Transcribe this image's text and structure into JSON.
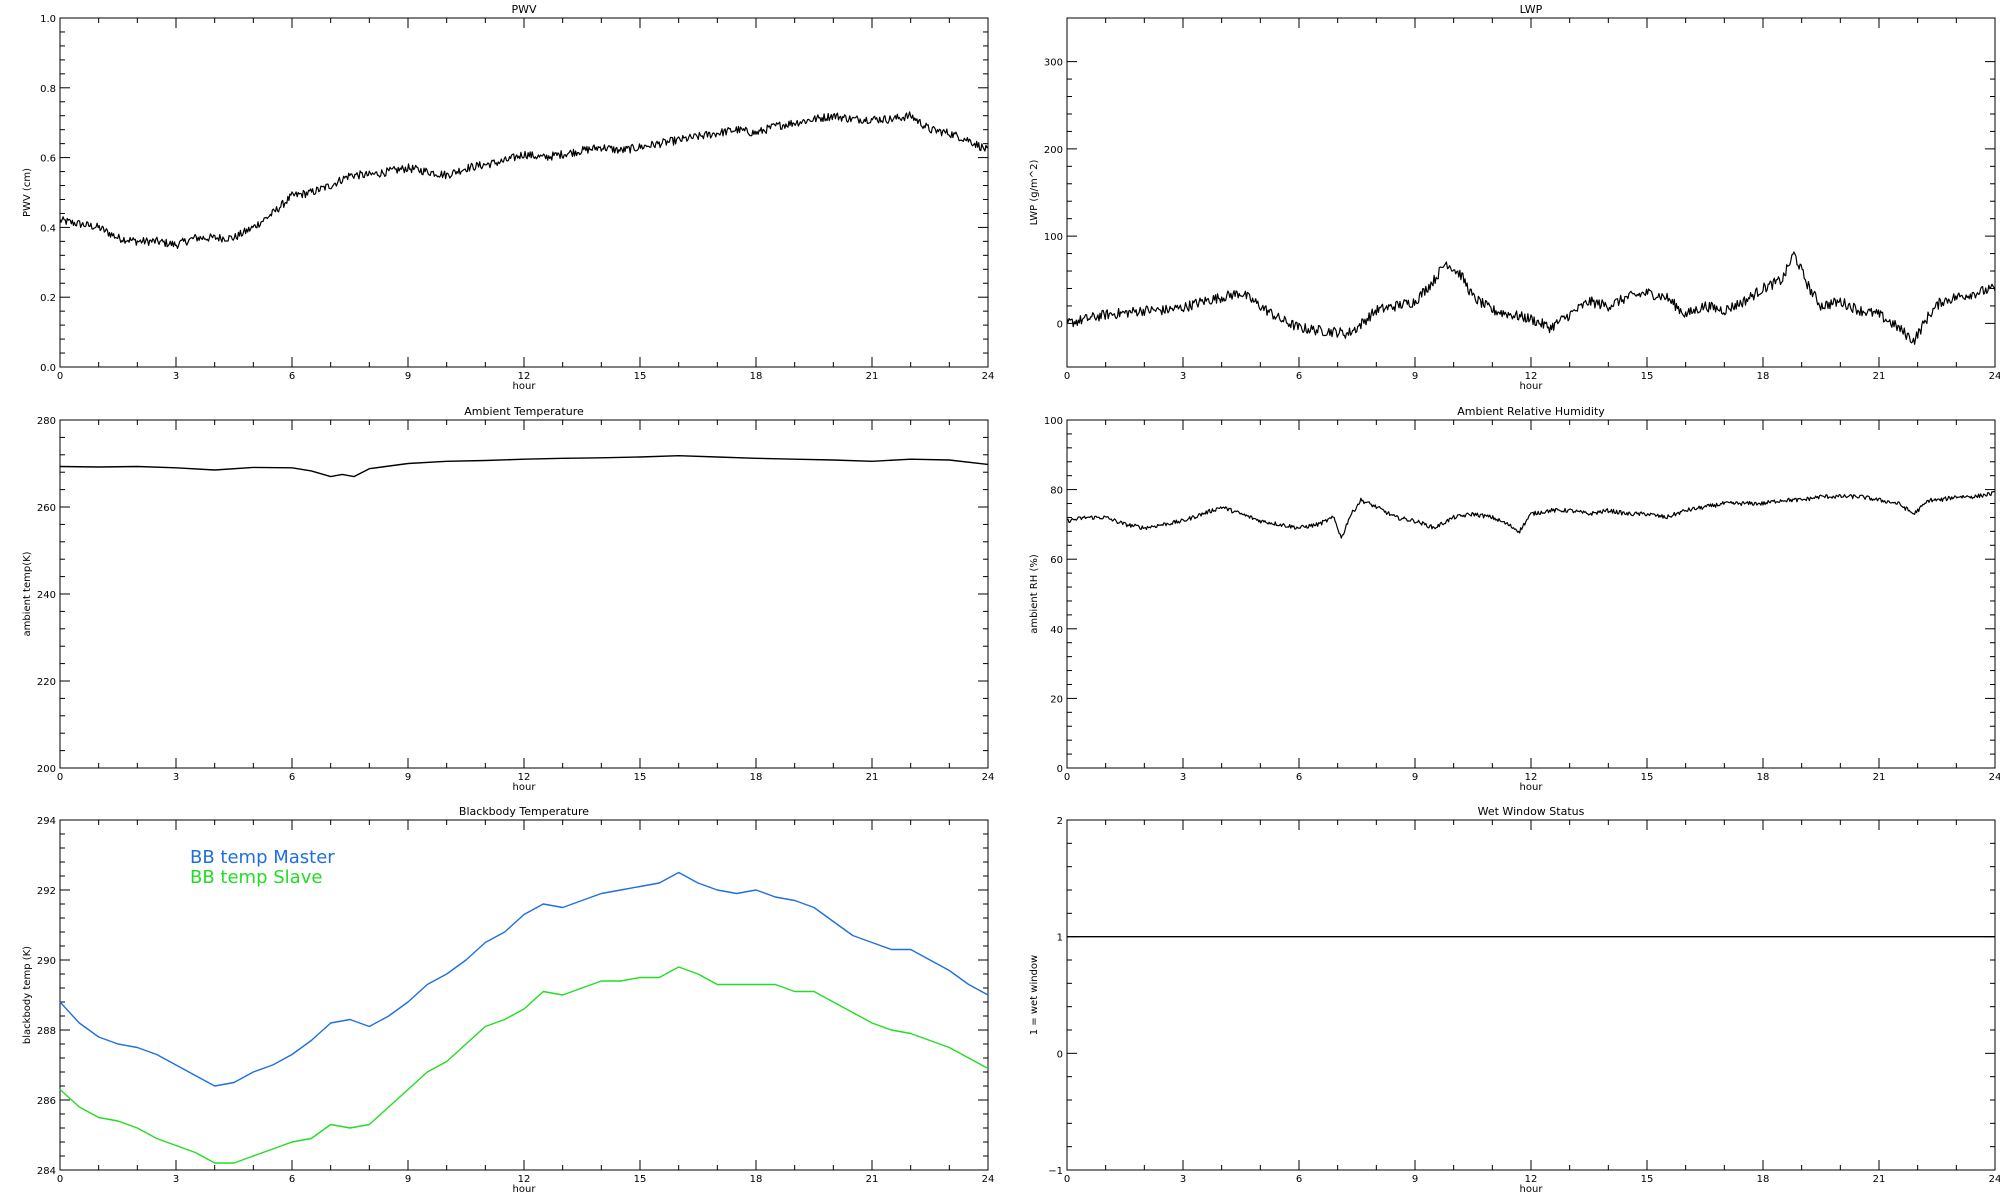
{
  "chart_data": [
    {
      "id": "pwv",
      "type": "line",
      "title": "PWV",
      "xlabel": "hour",
      "ylabel": "PWV (cm)",
      "xlim": [
        0,
        24
      ],
      "ylim": [
        0,
        1.0
      ],
      "xticks": [
        0,
        3,
        6,
        9,
        12,
        15,
        18,
        21,
        24
      ],
      "yticks": [
        "0.0",
        "0.2",
        "0.4",
        "0.6",
        "0.8",
        "1.0"
      ],
      "ytick_values": [
        0,
        0.2,
        0.4,
        0.6,
        0.8,
        1.0
      ],
      "noise": 0.012,
      "series": [
        {
          "color": "#000000",
          "x": [
            0,
            0.5,
            1,
            1.5,
            2,
            2.5,
            3,
            3.5,
            4,
            4.5,
            5,
            5.5,
            6,
            6.5,
            7,
            7.5,
            8,
            8.5,
            9,
            9.5,
            10,
            10.5,
            11,
            11.5,
            12,
            12.5,
            13,
            13.5,
            14,
            14.5,
            15,
            15.5,
            16,
            16.5,
            17,
            17.5,
            18,
            18.5,
            19,
            19.5,
            20,
            20.5,
            21,
            21.5,
            22,
            22.5,
            23,
            23.5,
            24
          ],
          "y": [
            0.42,
            0.41,
            0.4,
            0.37,
            0.36,
            0.36,
            0.35,
            0.37,
            0.37,
            0.37,
            0.4,
            0.44,
            0.49,
            0.5,
            0.52,
            0.55,
            0.55,
            0.56,
            0.57,
            0.56,
            0.55,
            0.57,
            0.58,
            0.59,
            0.61,
            0.6,
            0.61,
            0.62,
            0.63,
            0.62,
            0.63,
            0.64,
            0.65,
            0.66,
            0.67,
            0.68,
            0.67,
            0.69,
            0.7,
            0.71,
            0.72,
            0.71,
            0.71,
            0.71,
            0.72,
            0.68,
            0.67,
            0.65,
            0.62
          ]
        }
      ]
    },
    {
      "id": "lwp",
      "type": "line",
      "title": "LWP",
      "xlabel": "hour",
      "ylabel": "LWP (g/m^2)",
      "xlim": [
        0,
        24
      ],
      "ylim": [
        -50,
        350
      ],
      "xticks": [
        0,
        3,
        6,
        9,
        12,
        15,
        18,
        21,
        24
      ],
      "yticks": [
        "0",
        "100",
        "200",
        "300"
      ],
      "ytick_values": [
        0,
        100,
        200,
        300
      ],
      "noise": 6,
      "series": [
        {
          "color": "#000000",
          "x": [
            0,
            0.5,
            1,
            1.5,
            2,
            2.5,
            3,
            3.5,
            4,
            4.5,
            5,
            5.5,
            6,
            6.5,
            7,
            7.25,
            7.5,
            8,
            8.5,
            9,
            9.5,
            9.8,
            10.2,
            10.5,
            11,
            11.5,
            12,
            12.5,
            13,
            13.5,
            14,
            14.5,
            15,
            15.5,
            16,
            16.5,
            17,
            17.5,
            18,
            18.5,
            18.8,
            19.2,
            19.5,
            20,
            20.5,
            21,
            21.5,
            21.9,
            22.3,
            22.6,
            23,
            23.5,
            24
          ],
          "y": [
            0,
            5,
            10,
            12,
            15,
            15,
            18,
            25,
            30,
            35,
            20,
            5,
            -5,
            -8,
            -10,
            -12,
            -5,
            15,
            20,
            25,
            50,
            70,
            55,
            30,
            15,
            10,
            5,
            -5,
            10,
            25,
            20,
            30,
            35,
            30,
            10,
            20,
            15,
            25,
            40,
            50,
            80,
            40,
            20,
            25,
            15,
            10,
            -5,
            -20,
            10,
            25,
            30,
            35,
            40
          ]
        }
      ]
    },
    {
      "id": "ambient_temp",
      "type": "line",
      "title": "Ambient Temperature",
      "xlabel": "hour",
      "ylabel": "ambient temp(K)",
      "xlim": [
        0,
        24
      ],
      "ylim": [
        200,
        280
      ],
      "xticks": [
        0,
        3,
        6,
        9,
        12,
        15,
        18,
        21,
        24
      ],
      "yticks": [
        "200",
        "220",
        "240",
        "260",
        "280"
      ],
      "ytick_values": [
        200,
        220,
        240,
        260,
        280
      ],
      "noise": 0,
      "series": [
        {
          "color": "#000000",
          "x": [
            0,
            1,
            2,
            3,
            4,
            5,
            6,
            6.5,
            7,
            7.3,
            7.6,
            8,
            9,
            10,
            11,
            12,
            13,
            14,
            15,
            16,
            17,
            18,
            19,
            20,
            21,
            22,
            23,
            24
          ],
          "y": [
            269.3,
            269.2,
            269.3,
            269.0,
            268.5,
            269.1,
            269.0,
            268.3,
            267.0,
            267.5,
            267.0,
            268.8,
            270.0,
            270.5,
            270.7,
            271.0,
            271.2,
            271.3,
            271.5,
            271.8,
            271.5,
            271.2,
            271.0,
            270.8,
            270.5,
            271.0,
            270.8,
            269.8
          ]
        }
      ]
    },
    {
      "id": "ambient_rh",
      "type": "line",
      "title": "Ambient Relative Humidity",
      "xlabel": "hour",
      "ylabel": "ambient RH (%)",
      "xlim": [
        0,
        24
      ],
      "ylim": [
        0,
        100
      ],
      "xticks": [
        0,
        3,
        6,
        9,
        12,
        15,
        18,
        21,
        24
      ],
      "yticks": [
        "0",
        "20",
        "40",
        "60",
        "80",
        "100"
      ],
      "ytick_values": [
        0,
        20,
        40,
        60,
        80,
        100
      ],
      "noise": 0.6,
      "series": [
        {
          "color": "#000000",
          "x": [
            0,
            0.5,
            1,
            1.5,
            2,
            2.5,
            3,
            3.5,
            4,
            4.5,
            5,
            5.5,
            6,
            6.5,
            6.9,
            7.1,
            7.3,
            7.6,
            8,
            8.5,
            9,
            9.5,
            10,
            10.5,
            11,
            11.4,
            11.7,
            12,
            12.5,
            13,
            13.5,
            14,
            14.5,
            15,
            15.5,
            16,
            16.5,
            17,
            17.5,
            18,
            18.5,
            19,
            19.5,
            20,
            20.5,
            21,
            21.5,
            21.9,
            22.3,
            22.6,
            23,
            23.5,
            24
          ],
          "y": [
            71,
            72,
            72,
            70,
            69,
            70,
            71,
            73,
            75,
            73,
            71,
            70,
            69,
            70,
            72,
            66,
            72,
            77,
            75,
            72,
            71,
            69,
            72,
            73,
            72,
            70,
            68,
            73,
            74,
            74,
            73,
            74,
            73,
            73,
            72,
            74,
            75,
            76,
            76,
            76,
            77,
            77,
            78,
            78,
            78,
            77,
            76,
            73,
            77,
            77,
            78,
            78,
            79
          ]
        }
      ]
    },
    {
      "id": "blackbody_temp",
      "type": "line",
      "title": "Blackbody Temperature",
      "xlabel": "hour",
      "ylabel": "blackbody temp (K)",
      "xlim": [
        0,
        24
      ],
      "ylim": [
        284,
        294
      ],
      "xticks": [
        0,
        3,
        6,
        9,
        12,
        15,
        18,
        21,
        24
      ],
      "yticks": [
        "284",
        "286",
        "288",
        "290",
        "292",
        "294"
      ],
      "ytick_values": [
        284,
        286,
        288,
        290,
        292,
        294
      ],
      "noise": 0,
      "legend_position": "top-left",
      "series": [
        {
          "name": "BB temp Master",
          "color": "#1f6fe0",
          "x": [
            0,
            0.5,
            1,
            1.5,
            2,
            2.5,
            3,
            3.5,
            4,
            4.5,
            5,
            5.5,
            6,
            6.5,
            7,
            7.5,
            8,
            8.5,
            9,
            9.5,
            10,
            10.5,
            11,
            11.5,
            12,
            12.5,
            13,
            13.5,
            14,
            14.5,
            15,
            15.5,
            16,
            16.5,
            17,
            17.5,
            18,
            18.5,
            19,
            19.5,
            20,
            20.5,
            21,
            21.5,
            22,
            22.5,
            23,
            23.5,
            24
          ],
          "y": [
            288.8,
            288.2,
            287.8,
            287.6,
            287.5,
            287.3,
            287.0,
            286.7,
            286.4,
            286.5,
            286.8,
            287.0,
            287.3,
            287.7,
            288.2,
            288.3,
            288.1,
            288.4,
            288.8,
            289.3,
            289.6,
            290.0,
            290.5,
            290.8,
            291.3,
            291.6,
            291.5,
            291.7,
            291.9,
            292.0,
            292.1,
            292.2,
            292.5,
            292.2,
            292.0,
            291.9,
            292.0,
            291.8,
            291.7,
            291.5,
            291.1,
            290.7,
            290.5,
            290.3,
            290.3,
            290.0,
            289.7,
            289.3,
            289.0
          ]
        },
        {
          "name": "BB temp Slave",
          "color": "#22dd22",
          "x": [
            0,
            0.5,
            1,
            1.5,
            2,
            2.5,
            3,
            3.5,
            4,
            4.5,
            5,
            5.5,
            6,
            6.5,
            7,
            7.5,
            8,
            8.5,
            9,
            9.5,
            10,
            10.5,
            11,
            11.5,
            12,
            12.5,
            13,
            13.5,
            14,
            14.5,
            15,
            15.5,
            16,
            16.5,
            17,
            17.5,
            18,
            18.5,
            19,
            19.5,
            20,
            20.5,
            21,
            21.5,
            22,
            22.5,
            23,
            23.5,
            24
          ],
          "y": [
            286.3,
            285.8,
            285.5,
            285.4,
            285.2,
            284.9,
            284.7,
            284.5,
            284.2,
            284.2,
            284.4,
            284.6,
            284.8,
            284.9,
            285.3,
            285.2,
            285.3,
            285.8,
            286.3,
            286.8,
            287.1,
            287.6,
            288.1,
            288.3,
            288.6,
            289.1,
            289.0,
            289.2,
            289.4,
            289.4,
            289.5,
            289.5,
            289.8,
            289.6,
            289.3,
            289.3,
            289.3,
            289.3,
            289.1,
            289.1,
            288.8,
            288.5,
            288.2,
            288.0,
            287.9,
            287.7,
            287.5,
            287.2,
            286.9
          ]
        }
      ]
    },
    {
      "id": "wet_window",
      "type": "line",
      "title": "Wet Window Status",
      "xlabel": "hour",
      "ylabel": "1 = wet window",
      "xlim": [
        0,
        24
      ],
      "ylim": [
        -1,
        2
      ],
      "xticks": [
        0,
        3,
        6,
        9,
        12,
        15,
        18,
        21,
        24
      ],
      "yticks": [
        "−1",
        "0",
        "1",
        "2"
      ],
      "ytick_values": [
        -1,
        0,
        1,
        2
      ],
      "noise": 0,
      "series": [
        {
          "color": "#000000",
          "x": [
            0,
            24
          ],
          "y": [
            1,
            1
          ]
        }
      ]
    }
  ]
}
